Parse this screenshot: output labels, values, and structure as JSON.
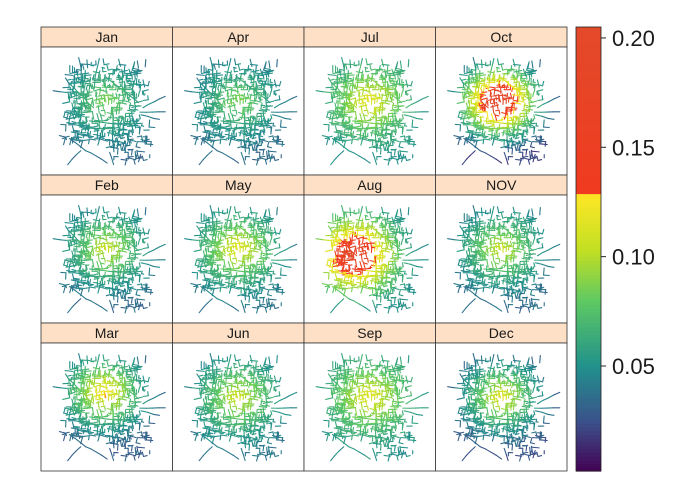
{
  "chart_data": {
    "type": "heatmap",
    "title": "",
    "facet_layout": "3 rows x 4 columns, filled column-wise",
    "panels": [
      {
        "label": "Jan",
        "peak": 0.09,
        "base": 0.035
      },
      {
        "label": "Feb",
        "peak": 0.11,
        "base": 0.035
      },
      {
        "label": "Mar",
        "peak": 0.13,
        "base": 0.03
      },
      {
        "label": "Apr",
        "peak": 0.09,
        "base": 0.035
      },
      {
        "label": "May",
        "peak": 0.12,
        "base": 0.04
      },
      {
        "label": "Jun",
        "peak": 0.11,
        "base": 0.04
      },
      {
        "label": "Jul",
        "peak": 0.12,
        "base": 0.05
      },
      {
        "label": "Aug",
        "peak": 0.19,
        "base": 0.05
      },
      {
        "label": "Sep",
        "peak": 0.12,
        "base": 0.05
      },
      {
        "label": "Oct",
        "peak": 0.2,
        "base": 0.02
      },
      {
        "label": "NOV",
        "peak": 0.11,
        "base": 0.035
      },
      {
        "label": "Dec",
        "peak": 0.12,
        "base": 0.025
      }
    ],
    "colorbar": {
      "ticks": [
        "0.05",
        "0.10",
        "0.15",
        "0.20"
      ],
      "tick_values": [
        0.05,
        0.1,
        0.15,
        0.2
      ],
      "range": [
        0.002,
        0.205
      ],
      "stops": [
        {
          "value": 0.002,
          "color": "#440154"
        },
        {
          "value": 0.025,
          "color": "#3b528b"
        },
        {
          "value": 0.05,
          "color": "#21918c"
        },
        {
          "value": 0.08,
          "color": "#5ec962"
        },
        {
          "value": 0.103,
          "color": "#c2df23"
        },
        {
          "value": 0.128,
          "color": "#fde725"
        },
        {
          "value": 0.129,
          "color": "#f03b20"
        },
        {
          "value": 0.205,
          "color": "#e34a2a"
        }
      ]
    },
    "strip_color": "#fde0c5",
    "grid": false
  }
}
